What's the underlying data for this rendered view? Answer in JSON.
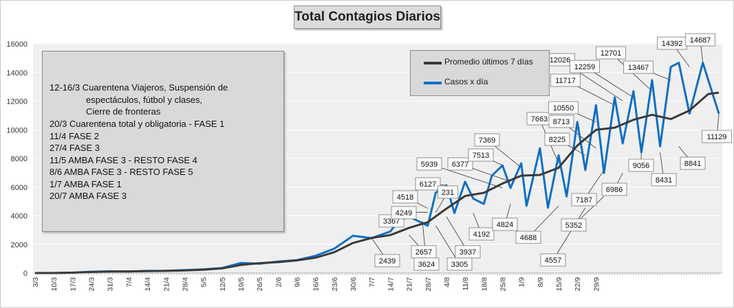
{
  "chart_data": {
    "type": "line",
    "title": "Total Contagios Diarios",
    "xlabel": "",
    "ylabel": "",
    "ylim": [
      0,
      16000
    ],
    "yticks": [
      0,
      2000,
      4000,
      6000,
      8000,
      10000,
      12000,
      14000,
      16000
    ],
    "xtick_labels": [
      "3/3",
      "10/3",
      "17/3",
      "24/3",
      "31/3",
      "7/4",
      "14/4",
      "21/4",
      "28/4",
      "5/5",
      "12/5",
      "19/5",
      "26/5",
      "2/6",
      "9/6",
      "16/6",
      "23/6",
      "30/6",
      "7/7",
      "14/7",
      "21/7",
      "28/7",
      "4/8",
      "11/8",
      "18/8",
      "25/8",
      "1/9",
      "8/9",
      "15/9",
      "22/9",
      "29/9"
    ],
    "legend_position": "top-center",
    "series": [
      {
        "name": "Promedio últimos 7 días",
        "color": "#3a3a3a",
        "points": [
          [
            0,
            0
          ],
          [
            7,
            2
          ],
          [
            14,
            25
          ],
          [
            21,
            70
          ],
          [
            28,
            110
          ],
          [
            35,
            115
          ],
          [
            42,
            135
          ],
          [
            49,
            150
          ],
          [
            56,
            180
          ],
          [
            63,
            230
          ],
          [
            70,
            320
          ],
          [
            77,
            560
          ],
          [
            84,
            690
          ],
          [
            91,
            760
          ],
          [
            98,
            880
          ],
          [
            105,
            1070
          ],
          [
            112,
            1450
          ],
          [
            119,
            2100
          ],
          [
            126,
            2450
          ],
          [
            133,
            2650
          ],
          [
            140,
            3150
          ],
          [
            147,
            3550
          ],
          [
            154,
            4500
          ],
          [
            161,
            5380
          ],
          [
            168,
            5600
          ],
          [
            175,
            6250
          ],
          [
            182,
            6800
          ],
          [
            189,
            6850
          ],
          [
            196,
            7350
          ],
          [
            203,
            8900
          ],
          [
            210,
            10000
          ],
          [
            217,
            10150
          ],
          [
            224,
            10700
          ],
          [
            231,
            11050
          ],
          [
            238,
            10750
          ],
          [
            245,
            11350
          ],
          [
            252,
            12500
          ],
          [
            256,
            12600
          ]
        ]
      },
      {
        "name": "Casos x día",
        "color": "#0f6fc4",
        "points": [
          [
            0,
            0
          ],
          [
            7,
            3
          ],
          [
            14,
            30
          ],
          [
            21,
            90
          ],
          [
            28,
            120
          ],
          [
            35,
            110
          ],
          [
            42,
            150
          ],
          [
            49,
            160
          ],
          [
            56,
            200
          ],
          [
            63,
            260
          ],
          [
            70,
            350
          ],
          [
            77,
            700
          ],
          [
            84,
            650
          ],
          [
            91,
            800
          ],
          [
            98,
            900
          ],
          [
            105,
            1200
          ],
          [
            112,
            1700
          ],
          [
            119,
            2600
          ],
          [
            126,
            2439
          ],
          [
            133,
            2900
          ],
          [
            136,
            3624
          ],
          [
            140,
            3937
          ],
          [
            147,
            3305
          ],
          [
            150,
            5600
          ],
          [
            154,
            6127
          ],
          [
            157,
            4192
          ],
          [
            161,
            6377
          ],
          [
            164,
            5200
          ],
          [
            168,
            4824
          ],
          [
            171,
            6800
          ],
          [
            175,
            7513
          ],
          [
            178,
            5939
          ],
          [
            182,
            7663
          ],
          [
            184,
            4688
          ],
          [
            189,
            8713
          ],
          [
            192,
            4557
          ],
          [
            196,
            8225
          ],
          [
            199,
            5352
          ],
          [
            203,
            10550
          ],
          [
            206,
            7187
          ],
          [
            210,
            11717
          ],
          [
            213,
            6986
          ],
          [
            217,
            12259
          ],
          [
            220,
            9056
          ],
          [
            224,
            12701
          ],
          [
            227,
            8431
          ],
          [
            231,
            13467
          ],
          [
            234,
            8841
          ],
          [
            238,
            14392
          ],
          [
            241,
            14687
          ],
          [
            245,
            11129
          ],
          [
            250,
            14687
          ],
          [
            256,
            11129
          ]
        ]
      }
    ],
    "annotations": [
      {
        "text": "3367",
        "x": 136,
        "y": 3367
      },
      {
        "text": "4518",
        "x": 147,
        "y": 4518
      },
      {
        "text": "4249",
        "x": 147,
        "y": 4249
      },
      {
        "text": "6127",
        "x": 154,
        "y": 6127
      },
      {
        "text": "231",
        "x": 150,
        "y": 4231
      },
      {
        "text": "5939",
        "x": 175,
        "y": 5939
      },
      {
        "text": "6377",
        "x": 178,
        "y": 6377
      },
      {
        "text": "7513",
        "x": 175,
        "y": 7513
      },
      {
        "text": "7369",
        "x": 182,
        "y": 7369
      },
      {
        "text": "2439",
        "x": 126,
        "y": 2439
      },
      {
        "text": "2657",
        "x": 140,
        "y": 2657
      },
      {
        "text": "3624",
        "x": 145,
        "y": 3624
      },
      {
        "text": "3305",
        "x": 150,
        "y": 3305
      },
      {
        "text": "3937",
        "x": 154,
        "y": 3937
      },
      {
        "text": "4192",
        "x": 164,
        "y": 4192
      },
      {
        "text": "4824",
        "x": 178,
        "y": 4824
      },
      {
        "text": "4688",
        "x": 196,
        "y": 4688
      },
      {
        "text": "4557",
        "x": 206,
        "y": 4557
      },
      {
        "text": "5352",
        "x": 213,
        "y": 5352
      },
      {
        "text": "7663",
        "x": 196,
        "y": 7663
      },
      {
        "text": "10550",
        "x": 210,
        "y": 10550
      },
      {
        "text": "8713",
        "x": 210,
        "y": 8713
      },
      {
        "text": "8225",
        "x": 206,
        "y": 8225
      },
      {
        "text": "11717",
        "x": 217,
        "y": 11717
      },
      {
        "text": "12026",
        "x": 220,
        "y": 12026
      },
      {
        "text": "12259",
        "x": 224,
        "y": 12259
      },
      {
        "text": "12701",
        "x": 231,
        "y": 12701
      },
      {
        "text": "13467",
        "x": 238,
        "y": 13467
      },
      {
        "text": "14392",
        "x": 245,
        "y": 14392
      },
      {
        "text": "14687",
        "x": 250,
        "y": 14687
      },
      {
        "text": "7187",
        "x": 213,
        "y": 7187
      },
      {
        "text": "6986",
        "x": 220,
        "y": 6986
      },
      {
        "text": "9056",
        "x": 227,
        "y": 9056
      },
      {
        "text": "8431",
        "x": 234,
        "y": 8431
      },
      {
        "text": "8841",
        "x": 241,
        "y": 8841
      },
      {
        "text": "11129",
        "x": 256,
        "y": 11129
      }
    ]
  },
  "notes": {
    "lines": [
      "12-16/3  Cuarentena Viajeros, Suspensión de",
      "espectáculos, fútbol y clases,",
      "Cierre de fronteras",
      "20/3  Cuarentena total y obligatoria - FASE 1",
      "11/4  FASE 2",
      "27/4  FASE 3",
      "11/5  AMBA FASE 3 - RESTO FASE 4",
      "8/6  AMBA FASE 3  - RESTO FASE 5",
      "1/7  AMBA FASE 1",
      "20/7  AMBA FASE 3"
    ]
  },
  "legend": {
    "avg_label": "Promedio últimos 7 días",
    "daily_label": "Casos x día"
  }
}
